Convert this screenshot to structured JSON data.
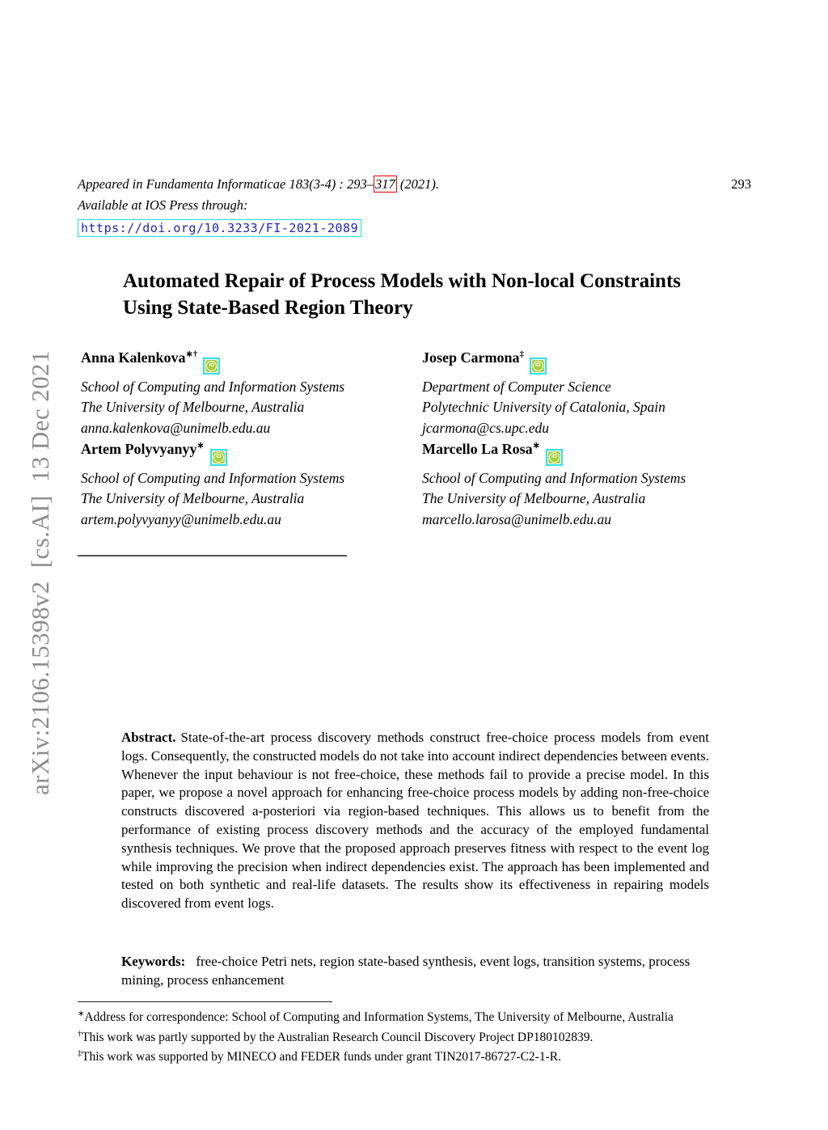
{
  "arxiv_banner": "arXiv:2106.15398v2  [cs.AI]  13 Dec 2021",
  "header": {
    "appeared_prefix": "Appeared in Fundamenta Informaticae 183(3-4) : 293–",
    "appeared_boxed_pages": "317",
    "appeared_suffix": " (2021).",
    "page_number": "293",
    "available_line": "Available at IOS Press through:",
    "doi_link": "https://doi.org/10.3233/FI-2021-2089"
  },
  "title": {
    "line1": "Automated Repair of Process Models with Non-local Constraints",
    "line2": "Using State-Based Region Theory"
  },
  "orcid_label": "iD",
  "authors": [
    {
      "name": "Anna Kalenkova",
      "marks": "∗†",
      "affiliation1": "School of Computing and Information Systems",
      "affiliation2": "The University of Melbourne, Australia",
      "email": "anna.kalenkova@unimelb.edu.au"
    },
    {
      "name": "Josep Carmona",
      "marks": "‡",
      "affiliation1": "Department of Computer Science",
      "affiliation2": "Polytechnic University of Catalonia, Spain",
      "email": "jcarmona@cs.upc.edu"
    },
    {
      "name": "Artem Polyvyanyy",
      "marks": "∗",
      "affiliation1": "School of Computing and Information Systems",
      "affiliation2": "The University of Melbourne, Australia",
      "email": "artem.polyvyanyy@unimelb.edu.au"
    },
    {
      "name": "Marcello La Rosa",
      "marks": "∗",
      "affiliation1": "School of Computing and Information Systems",
      "affiliation2": "The University of Melbourne, Australia",
      "email": "marcello.larosa@unimelb.edu.au"
    }
  ],
  "abstract": {
    "label": "Abstract.",
    "text": "State-of-the-art process discovery methods construct free-choice process models from event logs. Consequently, the constructed models do not take into account indirect dependencies between events. Whenever the input behaviour is not free-choice, these methods fail to provide a precise model. In this paper, we propose a novel approach for enhancing free-choice process models by adding non-free-choice constructs discovered a-posteriori via region-based techniques. This allows us to benefit from the performance of existing process discovery methods and the accuracy of the employed fundamental synthesis techniques. We prove that the proposed approach preserves fitness with respect to the event log while improving the precision when indirect dependencies exist. The approach has been implemented and tested on both synthetic and real-life datasets. The results show its effectiveness in repairing models discovered from event logs."
  },
  "keywords": {
    "label": "Keywords:",
    "text": "free-choice Petri nets, region state-based synthesis, event logs, transition systems, process mining, process enhancement"
  },
  "footnotes": [
    {
      "mark": "∗",
      "text": "Address for correspondence: School of Computing and Information Systems, The University of Melbourne, Australia"
    },
    {
      "mark": "†",
      "text": "This work was partly supported by the Australian Research Council Discovery Project DP180102839."
    },
    {
      "mark": "‡",
      "text": "This work was supported by MINECO and FEDER funds under grant TIN2017-86727-C2-1-R."
    }
  ],
  "colors": {
    "link_text": "#2222bb",
    "link_box_cyan": "#16dede",
    "page_link_box_red": "#e00000",
    "orcid_green": "#a6ce39",
    "banner_gray": "#8c8c8c"
  }
}
